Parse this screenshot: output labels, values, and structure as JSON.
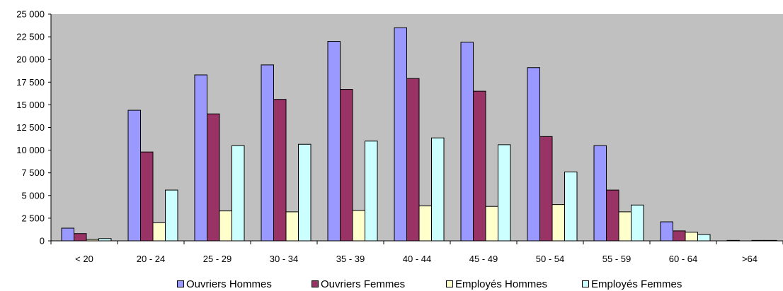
{
  "chart_data": {
    "type": "bar",
    "title": "",
    "xlabel": "",
    "ylabel": "",
    "categories": [
      "< 20",
      "20 - 24",
      "25 - 29",
      "30 - 34",
      "35 - 39",
      "40 - 44",
      "45 - 49",
      "50 - 54",
      "55 - 59",
      "60 - 64",
      ">64"
    ],
    "ylim": [
      0,
      25000
    ],
    "yticks": [
      0,
      2500,
      5000,
      7500,
      10000,
      12500,
      15000,
      17500,
      20000,
      22500,
      25000
    ],
    "ytick_labels": [
      "0",
      "2 500",
      "5 000",
      "7 500",
      "10 000",
      "12 500",
      "15 000",
      "17 500",
      "20 000",
      "22 500",
      "25 000"
    ],
    "grid": false,
    "plot_background": "#c0c0c0",
    "legend_position": "bottom",
    "series": [
      {
        "name": "Ouvriers Hommes",
        "color": "#9999ff",
        "values": [
          1400,
          14400,
          18300,
          19400,
          22000,
          23500,
          21900,
          19100,
          10500,
          2100,
          50
        ]
      },
      {
        "name": "Ouvriers Femmes",
        "color": "#993366",
        "values": [
          800,
          9800,
          14000,
          15600,
          16700,
          17900,
          16500,
          11500,
          5600,
          1100,
          0
        ]
      },
      {
        "name": "Employés Hommes",
        "color": "#ffffcc",
        "values": [
          150,
          2000,
          3300,
          3200,
          3350,
          3850,
          3800,
          4000,
          3200,
          950,
          50
        ]
      },
      {
        "name": "Employés Femmes",
        "color": "#ccffff",
        "values": [
          250,
          5600,
          10500,
          10650,
          11000,
          11350,
          10600,
          7600,
          3950,
          700,
          50
        ]
      }
    ]
  }
}
